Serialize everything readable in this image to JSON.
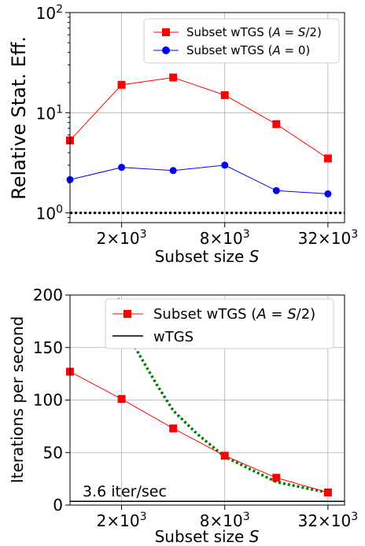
{
  "chart_data": [
    {
      "type": "line",
      "yscale": "log",
      "xscale": "log2",
      "ylabel": "Relative Stat. Eff.",
      "xlabel": "Subset size S",
      "ylim": [
        0.8,
        100
      ],
      "xlim": [
        1000,
        40000
      ],
      "yticks": [
        {
          "value": 1,
          "base": "10",
          "exp": "0"
        },
        {
          "value": 10,
          "base": "10",
          "exp": "1"
        },
        {
          "value": 100,
          "base": "10",
          "exp": "2"
        }
      ],
      "xticks": [
        {
          "value": 2000,
          "mant": "2",
          "exp": "3"
        },
        {
          "value": 8000,
          "mant": "8",
          "exp": "3"
        },
        {
          "value": 32000,
          "mant": "32",
          "exp": "3"
        }
      ],
      "grid": true,
      "legend_position": "top-right",
      "x": [
        1000,
        2000,
        4000,
        8000,
        16000,
        32000
      ],
      "series": [
        {
          "name": "Subset wTGS (A = S/2)",
          "marker": "square",
          "color": "#ff0000",
          "values": [
            5.3,
            19.0,
            22.5,
            15.0,
            7.7,
            3.5
          ]
        },
        {
          "name": "Subset wTGS (A = 0)",
          "marker": "circle",
          "color": "#0000ff",
          "values": [
            2.15,
            2.85,
            2.65,
            3.0,
            1.67,
            1.55
          ]
        }
      ],
      "reference_line": {
        "y": 1,
        "style": "dotted",
        "color": "#000000"
      }
    },
    {
      "type": "line",
      "xscale": "log2",
      "ylabel": "Iterations per second",
      "xlabel": "Subset size S",
      "ylim": [
        0,
        200
      ],
      "xlim": [
        1000,
        40000
      ],
      "yticks": [
        0,
        50,
        100,
        150,
        200
      ],
      "xticks": [
        {
          "value": 2000,
          "mant": "2",
          "exp": "3"
        },
        {
          "value": 8000,
          "mant": "8",
          "exp": "3"
        },
        {
          "value": 32000,
          "mant": "32",
          "exp": "3"
        }
      ],
      "grid": true,
      "legend_position": "top-right",
      "x": [
        1000,
        2000,
        4000,
        8000,
        16000,
        32000
      ],
      "series": [
        {
          "name": "Subset wTGS (A = S/2)",
          "marker": "square",
          "color": "#ff0000",
          "values": [
            127,
            101,
            73,
            47,
            26,
            12
          ]
        },
        {
          "name": "wTGS",
          "marker": "none",
          "color": "#000000",
          "values": [
            3.6,
            3.6,
            3.6,
            3.6,
            3.6,
            3.6
          ]
        }
      ],
      "reference_curve": {
        "style": "dotted",
        "color": "#008000",
        "x": [
          1900,
          2400,
          3200,
          4000,
          5500,
          8000,
          12000,
          16000,
          24000,
          32000
        ],
        "values": [
          197,
          150,
          115,
          90,
          68,
          46,
          32,
          22,
          16,
          12
        ]
      },
      "annotation": "3.6 iter/sec"
    }
  ]
}
